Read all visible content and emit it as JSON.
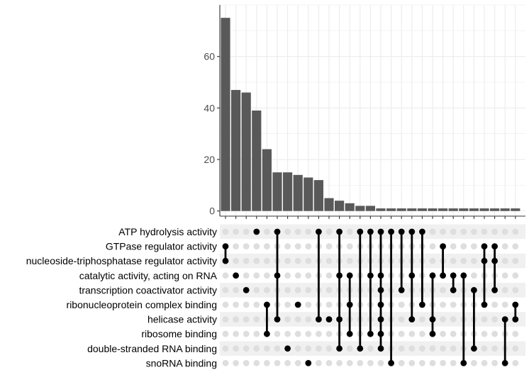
{
  "chart_data": {
    "type": "upset",
    "sets": [
      "ATP hydrolysis activity",
      "GTPase regulator activity",
      "nucleoside-triphosphatase regulator activity",
      "catalytic activity, acting on RNA",
      "transcription coactivator activity",
      "ribonucleoprotein complex binding",
      "helicase activity",
      "ribosome binding",
      "double-stranded RNA binding",
      "snoRNA binding"
    ],
    "intersections": [
      {
        "size": 75,
        "sets": [
          1,
          2
        ]
      },
      {
        "size": 47,
        "sets": [
          3
        ]
      },
      {
        "size": 46,
        "sets": [
          4
        ]
      },
      {
        "size": 39,
        "sets": [
          0
        ]
      },
      {
        "size": 24,
        "sets": [
          5,
          7
        ]
      },
      {
        "size": 15,
        "sets": [
          0,
          3,
          6
        ]
      },
      {
        "size": 15,
        "sets": [
          8
        ]
      },
      {
        "size": 14,
        "sets": [
          5
        ]
      },
      {
        "size": 13,
        "sets": [
          9
        ]
      },
      {
        "size": 12,
        "sets": [
          0,
          6
        ]
      },
      {
        "size": 5,
        "sets": [
          6
        ]
      },
      {
        "size": 4,
        "sets": [
          0,
          3,
          6,
          8
        ]
      },
      {
        "size": 3,
        "sets": [
          3,
          5,
          7
        ]
      },
      {
        "size": 2,
        "sets": [
          0,
          8
        ]
      },
      {
        "size": 2,
        "sets": [
          0,
          3,
          7
        ]
      },
      {
        "size": 1,
        "sets": [
          0,
          3,
          4,
          5,
          6,
          7,
          8
        ]
      },
      {
        "size": 1,
        "sets": [
          0,
          9
        ]
      },
      {
        "size": 1,
        "sets": [
          0,
          4
        ]
      },
      {
        "size": 1,
        "sets": [
          0,
          3,
          6
        ]
      },
      {
        "size": 1,
        "sets": [
          0,
          5
        ]
      },
      {
        "size": 1,
        "sets": [
          3,
          6,
          7
        ]
      },
      {
        "size": 1,
        "sets": [
          1,
          3
        ]
      },
      {
        "size": 1,
        "sets": [
          3,
          4
        ]
      },
      {
        "size": 1,
        "sets": [
          3,
          9
        ]
      },
      {
        "size": 1,
        "sets": [
          4,
          8
        ]
      },
      {
        "size": 1,
        "sets": [
          1,
          2,
          5
        ]
      },
      {
        "size": 1,
        "sets": [
          1,
          2,
          4
        ]
      },
      {
        "size": 1,
        "sets": [
          6,
          9
        ]
      },
      {
        "size": 1,
        "sets": [
          5,
          6
        ]
      }
    ],
    "yticks": [
      0,
      20,
      40,
      60
    ],
    "ylim": [
      -2,
      80
    ],
    "grid": true,
    "xlabel": "",
    "ylabel": "",
    "title": ""
  },
  "colors": {
    "bar": "#595959",
    "dot_on": "#000000",
    "dot_off": "#dedede",
    "stripe": "#f0f0f0",
    "grid": "#ebebeb",
    "axis": "#333333",
    "tick_text": "#4d4d4d",
    "label_text": "#000000"
  }
}
